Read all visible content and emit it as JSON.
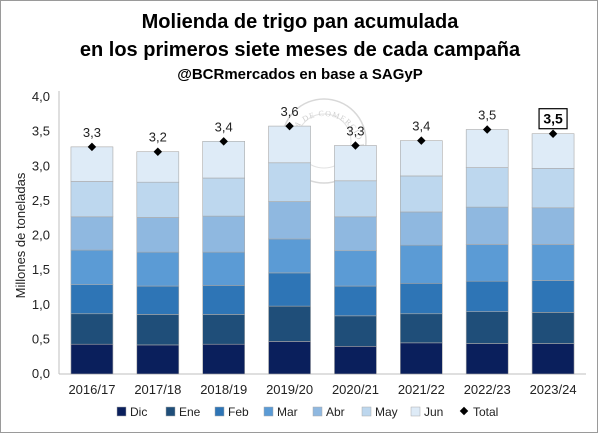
{
  "chart_data": {
    "type": "bar",
    "stacked": true,
    "title_lines": [
      "Molienda de trigo pan acumulada",
      "en los primeros siete meses de cada campaña"
    ],
    "subtitle": "@BCRmercados en base a SAGyP",
    "ylabel": "Millones de toneladas",
    "xlabel": "",
    "ylim": [
      0,
      4
    ],
    "yticks": [
      "0,0",
      "0,5",
      "1,0",
      "1,5",
      "2,0",
      "2,5",
      "3,0",
      "3,5",
      "4,0"
    ],
    "categories": [
      "2016/17",
      "2017/18",
      "2018/19",
      "2019/20",
      "2020/21",
      "2021/22",
      "2022/23",
      "2023/24"
    ],
    "series": [
      {
        "name": "Dic",
        "color": "#0a1f5c",
        "values": [
          0.43,
          0.42,
          0.43,
          0.47,
          0.4,
          0.45,
          0.44,
          0.44
        ]
      },
      {
        "name": "Ene",
        "color": "#1f4e79",
        "values": [
          0.44,
          0.44,
          0.43,
          0.51,
          0.44,
          0.42,
          0.46,
          0.45
        ]
      },
      {
        "name": "Feb",
        "color": "#2e75b6",
        "values": [
          0.42,
          0.41,
          0.42,
          0.48,
          0.43,
          0.44,
          0.44,
          0.46
        ]
      },
      {
        "name": "Mar",
        "color": "#5b9bd5",
        "values": [
          0.5,
          0.49,
          0.48,
          0.49,
          0.51,
          0.55,
          0.53,
          0.52
        ]
      },
      {
        "name": "Abr",
        "color": "#8fb8e0",
        "values": [
          0.48,
          0.5,
          0.52,
          0.54,
          0.49,
          0.48,
          0.54,
          0.53
        ]
      },
      {
        "name": "May",
        "color": "#bdd7ee",
        "values": [
          0.51,
          0.51,
          0.55,
          0.56,
          0.52,
          0.52,
          0.57,
          0.57
        ]
      },
      {
        "name": "Jun",
        "color": "#deebf7",
        "values": [
          0.5,
          0.44,
          0.53,
          0.53,
          0.51,
          0.51,
          0.55,
          0.5
        ]
      }
    ],
    "totals": {
      "name": "Total",
      "values": [
        3.28,
        3.21,
        3.36,
        3.58,
        3.3,
        3.37,
        3.53,
        3.47
      ],
      "labels": [
        "3,3",
        "3,2",
        "3,4",
        "3,6",
        "3,3",
        "3,4",
        "3,5",
        "3,5"
      ],
      "highlight_index": 7
    },
    "grid": false,
    "legend_position": "bottom",
    "legend_items": [
      "Dic",
      "Ene",
      "Feb",
      "Mar",
      "Abr",
      "May",
      "Jun",
      "Total"
    ],
    "watermark_text": "BOLSA DE COMERCIO DE ROSARIO"
  }
}
